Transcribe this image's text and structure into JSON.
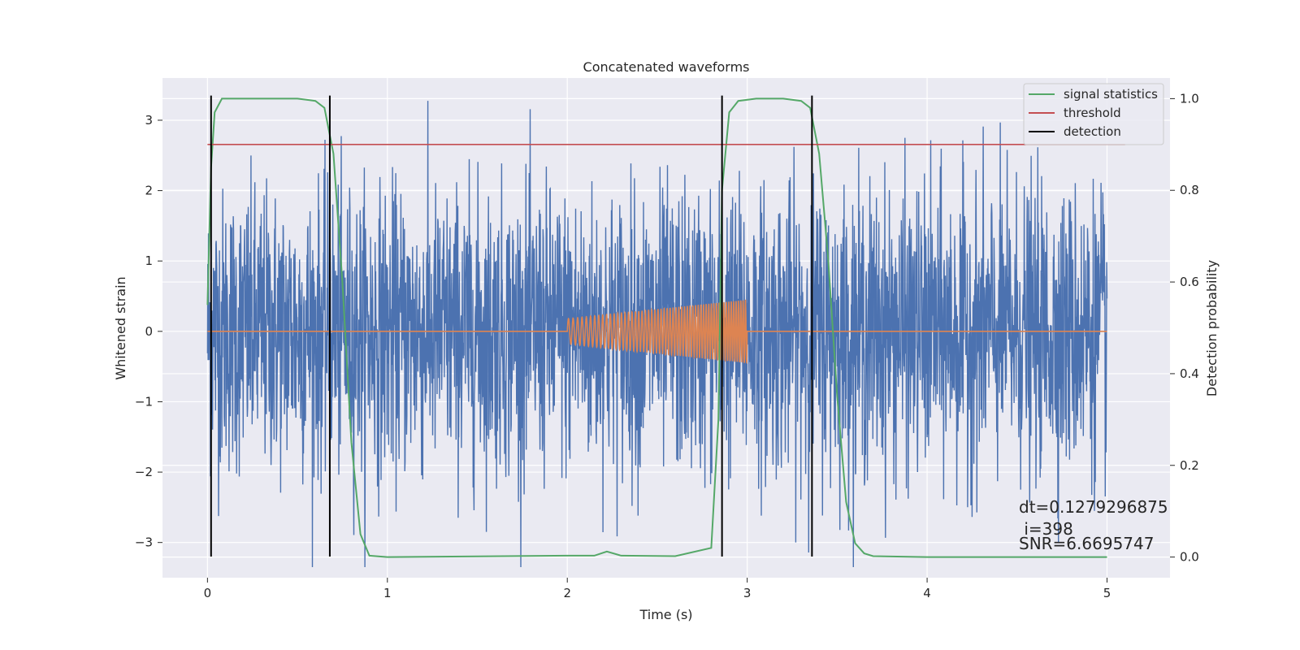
{
  "chart_data": {
    "type": "line",
    "title": "Concatenated waveforms",
    "xlabel": "Time (s)",
    "ylabel": "Whitened strain",
    "y2label": "Detection probability",
    "xlim": [
      -0.25,
      5.35
    ],
    "ylim": [
      -3.5,
      3.6
    ],
    "y2lim": [
      -0.045,
      1.045
    ],
    "x_ticks": [
      0,
      1,
      2,
      3,
      4,
      5
    ],
    "y_ticks": [
      -3,
      -2,
      -1,
      0,
      1,
      2,
      3
    ],
    "y2_ticks": [
      0.0,
      0.2,
      0.4,
      0.6,
      0.8,
      1.0
    ],
    "x_tick_labels": [
      "0",
      "1",
      "2",
      "3",
      "4",
      "5"
    ],
    "y_tick_labels": [
      "−3",
      "−2",
      "−1",
      "0",
      "1",
      "2",
      "3"
    ],
    "y2_tick_labels": [
      "0.0",
      "0.2",
      "0.4",
      "0.6",
      "0.8",
      "1.0"
    ],
    "grid": true,
    "legend_position": "top-right",
    "series": [
      {
        "name": "strain (whitened)",
        "axis": "left",
        "color": "#4c72b0",
        "description": "whitened noise spanning 0 to 5 s, amplitude envelope roughly ±3.3",
        "x_range": [
          0,
          5
        ],
        "approx_peak_amplitude": 3.35
      },
      {
        "name": "injected chirp",
        "axis": "left",
        "color": "#dd8452",
        "x": [
          0,
          2.0,
          2.0,
          3.0,
          3.0,
          5.0
        ],
        "envelope": [
          0,
          0,
          0.18,
          0.45,
          0,
          0
        ],
        "note": "flat at 0 except chirp from 2.0 to 3.0 s"
      },
      {
        "name": "signal statistics",
        "axis": "right",
        "color": "#55a868",
        "x": [
          0.0,
          0.02,
          0.04,
          0.08,
          0.2,
          0.5,
          0.6,
          0.65,
          0.7,
          0.75,
          0.8,
          0.85,
          0.9,
          1.0,
          2.0,
          2.15,
          2.22,
          2.3,
          2.6,
          2.8,
          2.84,
          2.86,
          2.9,
          2.95,
          3.05,
          3.2,
          3.3,
          3.35,
          3.4,
          3.45,
          3.5,
          3.55,
          3.6,
          3.65,
          3.7,
          4.0,
          5.0
        ],
        "values": [
          0.55,
          0.85,
          0.97,
          1.0,
          1.0,
          1.0,
          0.995,
          0.98,
          0.88,
          0.6,
          0.25,
          0.05,
          0.003,
          0.0,
          0.003,
          0.003,
          0.012,
          0.003,
          0.002,
          0.02,
          0.3,
          0.8,
          0.97,
          0.995,
          1.0,
          1.0,
          0.995,
          0.98,
          0.88,
          0.65,
          0.35,
          0.12,
          0.03,
          0.008,
          0.002,
          0.0,
          0.0
        ]
      },
      {
        "name": "threshold",
        "axis": "right",
        "color": "#c44e52",
        "x": [
          0,
          5.1
        ],
        "values": [
          0.9,
          0.9
        ]
      },
      {
        "name": "detection",
        "axis": "left",
        "color": "#000000",
        "vlines_x": [
          0.02,
          0.68,
          2.86,
          3.36
        ],
        "y_range": [
          -3.2,
          3.35
        ]
      }
    ],
    "legend": [
      "signal statistics",
      "threshold",
      "detection"
    ],
    "annotations": [
      "dt=0.1279296875",
      " i=398",
      "SNR=6.6695747"
    ]
  }
}
